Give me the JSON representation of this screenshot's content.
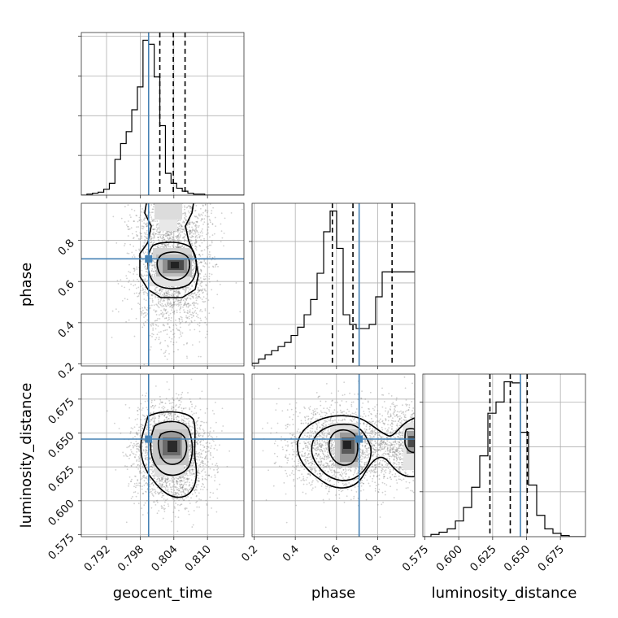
{
  "chart_data": {
    "type": "corner",
    "parameters": [
      "geocent_time",
      "phase",
      "luminosity_distance"
    ],
    "truth": {
      "geocent_time": 0.7995,
      "phase": 0.71,
      "luminosity_distance": 0.6455
    },
    "truth_color": "#4682b4",
    "ranges": {
      "geocent_time": [
        0.7875,
        0.8165
      ],
      "phase": [
        0.19,
        0.98
      ],
      "luminosity_distance": [
        0.5735,
        0.6935
      ]
    },
    "ticks": {
      "geocent_time": {
        "values": [
          0.792,
          0.798,
          0.804,
          0.81
        ],
        "labels": [
          "0.792",
          "0.798",
          "0.804",
          "0.810"
        ]
      },
      "phase": {
        "values": [
          0.2,
          0.4,
          0.6,
          0.8
        ],
        "labels": [
          "0.2",
          "0.4",
          "0.6",
          "0.8"
        ]
      },
      "luminosity_distance": {
        "values": [
          0.575,
          0.6,
          0.625,
          0.65,
          0.675
        ],
        "labels": [
          "0.575",
          "0.600",
          "0.625",
          "0.650",
          "0.675"
        ]
      }
    },
    "grid": true,
    "histograms": {
      "geocent_time": {
        "bin_start": 0.7875,
        "bin_width": 0.001,
        "counts": [
          0,
          1,
          2,
          3,
          6,
          12,
          36,
          52,
          64,
          86,
          109,
          156,
          152,
          119,
          70,
          22,
          12,
          7,
          4,
          2,
          1,
          1,
          0,
          0,
          0,
          0,
          0,
          0,
          0
        ],
        "quantiles": [
          0.8015,
          0.8039,
          0.806
        ]
      },
      "phase": {
        "bin_start": 0.19,
        "bin_width": 0.0316,
        "counts": [
          2,
          5,
          8,
          11,
          14,
          17,
          22,
          28,
          37,
          48,
          67,
          97,
          112,
          85,
          37,
          30,
          27,
          27,
          30,
          50,
          68,
          68,
          68,
          68,
          68
        ],
        "quantiles": [
          0.58,
          0.68,
          0.87
        ]
      },
      "luminosity_distance": {
        "bin_start": 0.5735,
        "bin_width": 0.006,
        "counts": [
          0,
          2,
          4,
          7,
          14,
          26,
          44,
          72,
          110,
          120,
          138,
          137,
          93,
          46,
          19,
          7,
          3,
          1,
          0,
          0
        ],
        "quantiles": [
          0.623,
          0.638,
          0.6505
        ]
      }
    },
    "density_2d": {
      "phase_vs_geocent_time": {
        "x": "geocent_time",
        "y": "phase",
        "peak": [
          0.804,
          0.685
        ],
        "contour_levels": 3
      },
      "luminosity_distance_vs_geocent_time": {
        "x": "geocent_time",
        "y": "luminosity_distance",
        "peak": [
          0.8035,
          0.6405
        ],
        "contour_levels": 3
      },
      "luminosity_distance_vs_phase": {
        "x": "phase",
        "y": "luminosity_distance",
        "peak": [
          0.66,
          0.642
        ],
        "contour_levels": 3
      }
    }
  }
}
